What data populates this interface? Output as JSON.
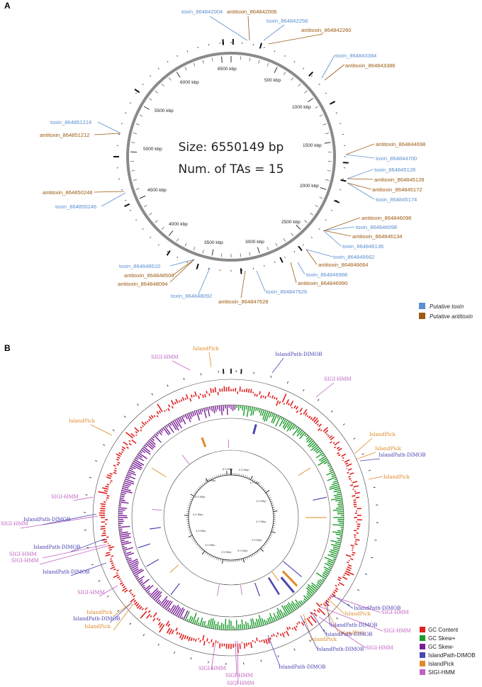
{
  "panel_a": {
    "letter": "A",
    "size_text": "Size: 6550149 bp",
    "tas_text": "Num. of TAs = 15",
    "genome_length_bp": 6550149,
    "kbp_labels": [
      "500 kbp",
      "1000 kbp",
      "1500 kbp",
      "2000 kbp",
      "2500 kbp",
      "3000 kbp",
      "3500 kbp",
      "4000 kbp",
      "4500 kbp",
      "5000 kbp",
      "5500 kbp",
      "6000 kbp",
      "6500 kbp"
    ],
    "colors": {
      "toxin": "#5b8fd0",
      "antitoxin": "#9c5a12",
      "ring": "#8a8a8a"
    },
    "labels": [
      {
        "text": "toxin_864842004",
        "kind": "toxin"
      },
      {
        "text": "antitoxin_864842006",
        "kind": "antitoxin"
      },
      {
        "text": "toxin_864842258",
        "kind": "toxin"
      },
      {
        "text": "antitoxin_864842260",
        "kind": "antitoxin"
      },
      {
        "text": "toxin_864843384",
        "kind": "toxin"
      },
      {
        "text": "antitoxin_864843386",
        "kind": "antitoxin"
      },
      {
        "text": "antitoxin_864844698",
        "kind": "antitoxin"
      },
      {
        "text": "toxin_864844700",
        "kind": "toxin"
      },
      {
        "text": "toxin_864845126",
        "kind": "toxin"
      },
      {
        "text": "antitoxin_864845128",
        "kind": "antitoxin"
      },
      {
        "text": "antitoxin_864845172",
        "kind": "antitoxin"
      },
      {
        "text": "toxin_864845174",
        "kind": "toxin"
      },
      {
        "text": "antitoxin_864846096",
        "kind": "antitoxin"
      },
      {
        "text": "toxin_864846098",
        "kind": "toxin"
      },
      {
        "text": "antitoxin_864846134",
        "kind": "antitoxin"
      },
      {
        "text": "toxin_864846136",
        "kind": "toxin"
      },
      {
        "text": "toxin_864846662",
        "kind": "toxin"
      },
      {
        "text": "antitoxin_864846664",
        "kind": "antitoxin"
      },
      {
        "text": "toxin_864846988",
        "kind": "toxin"
      },
      {
        "text": "antitoxin_864846990",
        "kind": "antitoxin"
      },
      {
        "text": "toxin_864847626",
        "kind": "toxin"
      },
      {
        "text": "antitoxin_864847628",
        "kind": "antitoxin"
      },
      {
        "text": "toxin_864848092",
        "kind": "toxin"
      },
      {
        "text": "antitoxin_864848094",
        "kind": "antitoxin"
      },
      {
        "text": "antitoxin_864848508",
        "kind": "antitoxin"
      },
      {
        "text": "toxin_864848510",
        "kind": "toxin"
      },
      {
        "text": "toxin_864850246",
        "kind": "toxin"
      },
      {
        "text": "antitoxin_864850248",
        "kind": "antitoxin"
      },
      {
        "text": "antitoxin_864851212",
        "kind": "antitoxin"
      },
      {
        "text": "toxin_864851214",
        "kind": "toxin"
      }
    ],
    "legend": [
      {
        "text": "Putative toxin",
        "color": "#5b8fd0"
      },
      {
        "text": "Putative antitoxin",
        "color": "#9c5a12"
      }
    ]
  },
  "panel_b": {
    "letter": "B",
    "mbp_labels": [
      "0.5 Mbp",
      "1.0 Mbp",
      "1.5 Mbp",
      "2.0 Mbp",
      "2.5 Mbp",
      "3.0 Mbp",
      "3.5 Mbp",
      "4.0 Mbp",
      "4.5 Mbp",
      "5.0 Mbp",
      "5.5 Mbp",
      "6.0 Mbp",
      "6.5 Mbp"
    ],
    "colors": {
      "gc_content": "#e0201f",
      "gc_skew_pos": "#1a9a2a",
      "gc_skew_neg": "#7a1f96",
      "islandpath": "#4a45b0",
      "islandpick": "#e08a2a",
      "sigi": "#c060c0"
    },
    "labels": [
      {
        "text": "IslandPick",
        "kind": "islandpick"
      },
      {
        "text": "SIGI-HMM",
        "kind": "sigi"
      },
      {
        "text": "IslandPath-DIMOB",
        "kind": "islandpath"
      },
      {
        "text": "SIGI-HMM",
        "kind": "sigi"
      },
      {
        "text": "IslandPick",
        "kind": "islandpick"
      },
      {
        "text": "IslandPick",
        "kind": "islandpick"
      },
      {
        "text": "IslandPick",
        "kind": "islandpick"
      },
      {
        "text": "IslandPath-DIMOB",
        "kind": "islandpath"
      },
      {
        "text": "IslandPick",
        "kind": "islandpick"
      },
      {
        "text": "SIGI-HMM",
        "kind": "sigi"
      },
      {
        "text": "SIGI-HMM",
        "kind": "sigi"
      },
      {
        "text": "IslandPath-DIMOB",
        "kind": "islandpath"
      },
      {
        "text": "IslandPath-DIMOB",
        "kind": "islandpath"
      },
      {
        "text": "SIGI-HMM",
        "kind": "sigi"
      },
      {
        "text": "SIGI-HMM",
        "kind": "sigi"
      },
      {
        "text": "IslandPath-DIMOB",
        "kind": "islandpath"
      },
      {
        "text": "SIGI-HMM",
        "kind": "sigi"
      },
      {
        "text": "IslandPick",
        "kind": "islandpick"
      },
      {
        "text": "IslandPath-DIMOB",
        "kind": "islandpath"
      },
      {
        "text": "IslandPick",
        "kind": "islandpick"
      },
      {
        "text": "IslandPath-DIMOB",
        "kind": "islandpath"
      },
      {
        "text": "SIGI-HMM",
        "kind": "sigi"
      },
      {
        "text": "IslandPick",
        "kind": "islandpick"
      },
      {
        "text": "IslandPath-DIMOB",
        "kind": "islandpath"
      },
      {
        "text": "IslandPick",
        "kind": "islandpick"
      },
      {
        "text": "SIGI-HMM",
        "kind": "sigi"
      },
      {
        "text": "IslandPick",
        "kind": "islandpick"
      },
      {
        "text": "IslandPath-DIMOB",
        "kind": "islandpath"
      },
      {
        "text": "IslandPath-DIMOB",
        "kind": "islandpath"
      },
      {
        "text": "SIGI-HMM",
        "kind": "sigi"
      },
      {
        "text": "IslandPath-DIMOB",
        "kind": "islandpath"
      },
      {
        "text": "SIGI-HMM",
        "kind": "sigi"
      },
      {
        "text": "SIGI-HMM",
        "kind": "sigi"
      },
      {
        "text": "SIGI-HMM",
        "kind": "sigi"
      }
    ],
    "legend": [
      {
        "text": "GC Content",
        "color": "#e0201f"
      },
      {
        "text": "GC Skew+",
        "color": "#1a9a2a"
      },
      {
        "text": "GC Skew-",
        "color": "#7a1f96"
      },
      {
        "text": "IslandPath-DIMOB",
        "color": "#4a45b0"
      },
      {
        "text": "IslandPick",
        "color": "#e08a2a"
      },
      {
        "text": "SIGI-HMM",
        "color": "#c060c0"
      }
    ]
  }
}
